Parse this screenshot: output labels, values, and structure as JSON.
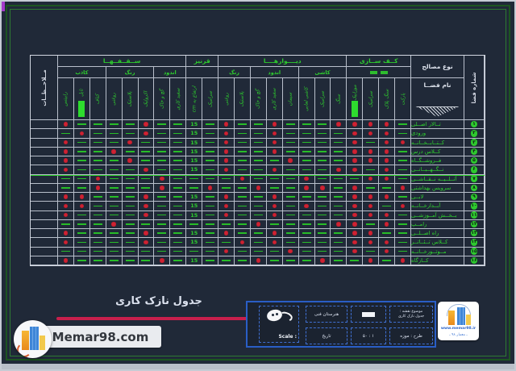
{
  "title": {
    "text": "جدول نازک کاری"
  },
  "watermark": {
    "text": "Memar98.com"
  },
  "stamp": {
    "site": "www.memar98.ir",
    "caption": "ـ معمار ۹۸ ـ"
  },
  "titleblock": {
    "scale_label": "Scale :",
    "school": "هنرستان فنی",
    "date_label": "تاریخ",
    "scale_value": "۵۰ : ۱",
    "subject_label": "موضوع نقشه :",
    "subject_value": "جدول نازک کاری",
    "project_label": "طرح : موزه"
  },
  "table": {
    "corner": {
      "notes": "مــلاحــظــات",
      "materials": "نوع مصالح",
      "space_name": "نام فضــا",
      "space_no": "شماره فضا"
    },
    "groups": [
      {
        "label": "ســقــفــهــا",
        "subs": [
          {
            "label": "کاذب",
            "cols": [
              "رابیتس",
              "تایل",
              "کناف"
            ]
          },
          {
            "label": "رنگ",
            "cols": [
              "روغنی",
              "پلاستیک",
              "اکرولیک"
            ]
          },
          {
            "label": "اندود",
            "cols": [
              "گچ و خاک",
              "سفید کاری"
            ]
          }
        ]
      },
      {
        "label": "قرنیز",
        "subs": [
          {
            "label": "",
            "cols": [
              "ارتفاع به cm",
              "سرامیک"
            ],
            "marks": false
          }
        ]
      },
      {
        "label": "دیــــوارهــــا",
        "subs": [
          {
            "label": "رنگ",
            "cols": [
              "روغنی",
              "پلاستیک"
            ]
          },
          {
            "label": "اندود",
            "cols": [
              "گچ و خاک",
              "سفید کاری",
              "سیمان"
            ]
          },
          {
            "label": "کاشی",
            "cols": [
              "کاشی لعابی",
              "سرامیک",
              "سنگ"
            ]
          }
        ]
      },
      {
        "label": "کــف ســازی",
        "subs": [
          {
            "label": "",
            "cols": [
              "موزاییک",
              "سرامیک",
              "سنگ پلاک",
              "پارکت"
            ],
            "marks": true
          }
        ]
      }
    ],
    "swatch_columns": [
      1,
      18
    ],
    "highlight_row_index": 6,
    "rows": [
      {
        "no": "۱",
        "name": "تــالار اصــلی",
        "cells": [
          "r",
          "g",
          "g",
          "g",
          "g",
          "r",
          "g",
          "g",
          "15",
          "g",
          "r",
          "g",
          "g",
          "r",
          "g",
          "g",
          "g",
          "r",
          "r",
          "r",
          "r",
          "g"
        ]
      },
      {
        "no": "۲",
        "name": "ورودی",
        "cells": [
          "g",
          "r",
          "g",
          "g",
          "g",
          "r",
          "g",
          "g",
          "15",
          "g",
          "r",
          "g",
          "g",
          "r",
          "g",
          "g",
          "g",
          "g",
          "r",
          "r",
          "r",
          "g"
        ]
      },
      {
        "no": "۳",
        "name": "کــتــابــخــانــه",
        "cells": [
          "r",
          "g",
          "g",
          "g",
          "r",
          "g",
          "g",
          "g",
          "15",
          "g",
          "r",
          "g",
          "g",
          "r",
          "g",
          "g",
          "g",
          "g",
          "r",
          "g",
          "r",
          "r"
        ]
      },
      {
        "no": "۴",
        "name": "کــلاس درس",
        "cells": [
          "r",
          "g",
          "g",
          "r",
          "g",
          "g",
          "g",
          "g",
          "15",
          "g",
          "r",
          "g",
          "g",
          "r",
          "g",
          "g",
          "g",
          "g",
          "r",
          "r",
          "r",
          "g"
        ]
      },
      {
        "no": "۵",
        "name": "فــروشــگــاه",
        "cells": [
          "r",
          "g",
          "g",
          "g",
          "r",
          "g",
          "g",
          "g",
          "15",
          "g",
          "r",
          "g",
          "g",
          "g",
          "r",
          "g",
          "g",
          "g",
          "r",
          "r",
          "r",
          "g"
        ]
      },
      {
        "no": "۶",
        "name": "نــگــهــبــانــی",
        "cells": [
          "r",
          "g",
          "g",
          "g",
          "g",
          "r",
          "g",
          "g",
          "15",
          "g",
          "r",
          "g",
          "g",
          "r",
          "g",
          "g",
          "g",
          "r",
          "r",
          "g",
          "r",
          "g"
        ]
      },
      {
        "no": "۷",
        "name": "آتــلــیــه نــقــاشــی",
        "cells": [
          "g",
          "g",
          "r",
          "g",
          "g",
          "g",
          "r",
          "g",
          "g",
          "g",
          "g",
          "r",
          "g",
          "g",
          "g",
          "r",
          "g",
          "g",
          "g",
          "r",
          "r",
          "g"
        ]
      },
      {
        "no": "۸",
        "name": "سرویس بهداشتی",
        "cells": [
          "g",
          "g",
          "r",
          "g",
          "g",
          "g",
          "r",
          "g",
          "g",
          "r",
          "g",
          "g",
          "r",
          "g",
          "g",
          "r",
          "r",
          "g",
          "r",
          "g",
          "g",
          "r"
        ]
      },
      {
        "no": "۹",
        "name": "لابــی",
        "cells": [
          "r",
          "r",
          "g",
          "g",
          "g",
          "r",
          "g",
          "g",
          "15",
          "g",
          "r",
          "g",
          "g",
          "r",
          "g",
          "g",
          "g",
          "g",
          "r",
          "r",
          "r",
          "g"
        ]
      },
      {
        "no": "۱۰",
        "name": "آبــدارخــانــه",
        "cells": [
          "r",
          "r",
          "g",
          "g",
          "g",
          "r",
          "g",
          "g",
          "15",
          "g",
          "r",
          "g",
          "g",
          "r",
          "g",
          "r",
          "g",
          "g",
          "r",
          "r",
          "g",
          "r"
        ]
      },
      {
        "no": "۱۱",
        "name": "بــخــش آمــوزشــی",
        "cells": [
          "r",
          "g",
          "g",
          "g",
          "g",
          "r",
          "g",
          "g",
          "15",
          "g",
          "r",
          "g",
          "g",
          "r",
          "g",
          "g",
          "g",
          "g",
          "r",
          "r",
          "r",
          "g"
        ]
      },
      {
        "no": "۱۲",
        "name": "رامــپ",
        "cells": [
          "g",
          "g",
          "g",
          "r",
          "g",
          "g",
          "g",
          "g",
          "g",
          "g",
          "g",
          "g",
          "r",
          "g",
          "g",
          "g",
          "g",
          "r",
          "r",
          "g",
          "r",
          "g"
        ]
      },
      {
        "no": "۱۳",
        "name": "راه اصــلــی",
        "cells": [
          "r",
          "g",
          "g",
          "g",
          "g",
          "r",
          "g",
          "g",
          "15",
          "g",
          "r",
          "g",
          "g",
          "r",
          "g",
          "g",
          "g",
          "g",
          "r",
          "r",
          "g",
          "g"
        ]
      },
      {
        "no": "۱۴",
        "name": "کــلاس تــئــاتــر",
        "cells": [
          "r",
          "g",
          "g",
          "g",
          "g",
          "r",
          "g",
          "g",
          "15",
          "g",
          "g",
          "r",
          "g",
          "r",
          "g",
          "g",
          "g",
          "g",
          "r",
          "r",
          "r",
          "g"
        ]
      },
      {
        "no": "۱۵",
        "name": "مــوتــورخــانــه",
        "cells": [
          "g",
          "g",
          "g",
          "g",
          "g",
          "g",
          "g",
          "g",
          "g",
          "g",
          "r",
          "g",
          "g",
          "g",
          "r",
          "g",
          "g",
          "g",
          "r",
          "g",
          "r",
          "g"
        ]
      },
      {
        "no": "۱۶",
        "name": "کــارگاه",
        "cells": [
          "r",
          "g",
          "g",
          "g",
          "g",
          "g",
          "r",
          "g",
          "15",
          "g",
          "g",
          "g",
          "r",
          "g",
          "g",
          "g",
          "r",
          "g",
          "g",
          "r",
          "g",
          "r"
        ]
      }
    ]
  }
}
